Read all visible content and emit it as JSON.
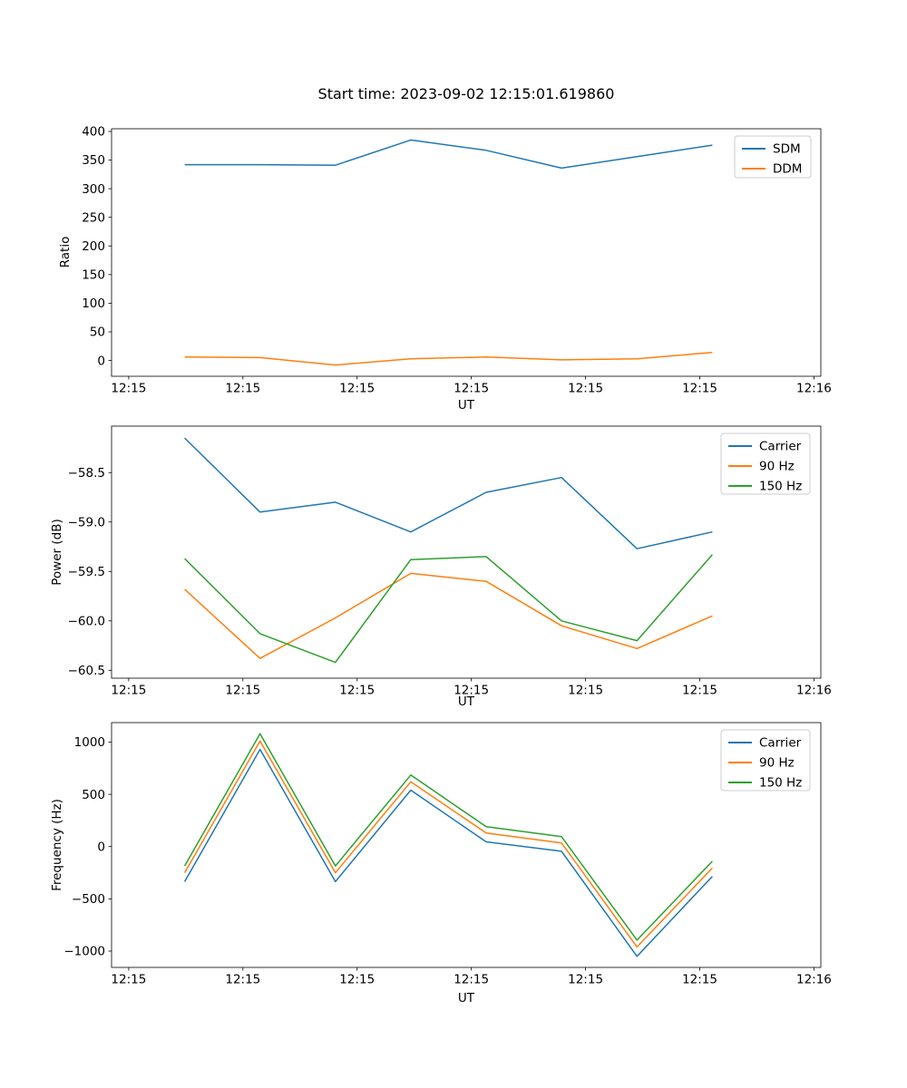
{
  "figure": {
    "title": "Start time: 2023-09-02 12:15:01.619860",
    "background": "#ffffff"
  },
  "sample_times_seconds_after_12_15": [
    4.9,
    11.5,
    18.1,
    24.7,
    31.3,
    37.9,
    44.5,
    51.1
  ],
  "chart_data": [
    {
      "type": "line",
      "title": "Start time: 2023-09-02 12:15:01.619860",
      "xlabel": "UT",
      "ylabel": "Ratio",
      "x": [
        4.9,
        11.5,
        18.1,
        24.7,
        31.3,
        37.9,
        44.5,
        51.1
      ],
      "xlim": [
        -1.5,
        60.6
      ],
      "xtick_values": [
        0,
        10,
        20,
        30,
        40,
        50,
        60
      ],
      "xtick_labels": [
        "12:15",
        "12:15",
        "12:15",
        "12:15",
        "12:15",
        "12:15",
        "12:16"
      ],
      "ylim": [
        -27.6,
        404.7
      ],
      "ytick_values": [
        0,
        50,
        100,
        150,
        200,
        250,
        300,
        350,
        400
      ],
      "ytick_labels": [
        "0",
        "50",
        "100",
        "150",
        "200",
        "250",
        "300",
        "350",
        "400"
      ],
      "grid": false,
      "legend_position": "upper right",
      "series": [
        {
          "name": "SDM",
          "color": "#1f77b4",
          "values": [
            342,
            342,
            341,
            385,
            367,
            336,
            356,
            376
          ]
        },
        {
          "name": "DDM",
          "color": "#ff7f0e",
          "values": [
            6,
            5,
            -8,
            3,
            6,
            1,
            3,
            14
          ]
        }
      ]
    },
    {
      "type": "line",
      "xlabel": "UT",
      "ylabel": "Power (dB)",
      "x": [
        4.9,
        11.5,
        18.1,
        24.7,
        31.3,
        37.9,
        44.5,
        51.1
      ],
      "xlim": [
        -1.5,
        60.6
      ],
      "xtick_values": [
        0,
        10,
        20,
        30,
        40,
        50,
        60
      ],
      "xtick_labels": [
        "12:15",
        "12:15",
        "12:15",
        "12:15",
        "12:15",
        "12:15",
        "12:16"
      ],
      "ylim": [
        -60.58,
        -58.03
      ],
      "ytick_values": [
        -60.5,
        -60.0,
        -59.5,
        -59.0,
        -58.5
      ],
      "ytick_labels": [
        "−60.5",
        "−60.0",
        "−59.5",
        "−59.0",
        "−58.5"
      ],
      "grid": false,
      "legend_position": "upper right",
      "series": [
        {
          "name": "Carrier",
          "color": "#1f77b4",
          "values": [
            -58.15,
            -58.9,
            -58.8,
            -59.1,
            -58.7,
            -58.55,
            -59.27,
            -59.1
          ]
        },
        {
          "name": "90 Hz",
          "color": "#ff7f0e",
          "values": [
            -59.68,
            -60.38,
            -59.97,
            -59.52,
            -59.6,
            -60.05,
            -60.28,
            -59.95
          ]
        },
        {
          "name": "150 Hz",
          "color": "#2ca02c",
          "values": [
            -59.37,
            -60.13,
            -60.42,
            -59.38,
            -59.35,
            -60.0,
            -60.2,
            -59.33
          ]
        }
      ]
    },
    {
      "type": "line",
      "xlabel": "UT",
      "ylabel": "Frequency (Hz)",
      "x": [
        4.9,
        11.5,
        18.1,
        24.7,
        31.3,
        37.9,
        44.5,
        51.1
      ],
      "xlim": [
        -1.5,
        60.6
      ],
      "xtick_values": [
        0,
        10,
        20,
        30,
        40,
        50,
        60
      ],
      "xtick_labels": [
        "12:15",
        "12:15",
        "12:15",
        "12:15",
        "12:15",
        "12:15",
        "12:16"
      ],
      "ylim": [
        -1156,
        1186
      ],
      "ytick_values": [
        -1000,
        -500,
        0,
        500,
        1000
      ],
      "ytick_labels": [
        "−1000",
        "−500",
        "0",
        "500",
        "1000"
      ],
      "grid": false,
      "legend_position": "upper right",
      "series": [
        {
          "name": "Carrier",
          "color": "#1f77b4",
          "values": [
            -335,
            930,
            -335,
            540,
            45,
            -45,
            -1050,
            -285
          ]
        },
        {
          "name": "90 Hz",
          "color": "#ff7f0e",
          "values": [
            -250,
            1010,
            -250,
            620,
            130,
            35,
            -960,
            -205
          ]
        },
        {
          "name": "150 Hz",
          "color": "#2ca02c",
          "values": [
            -185,
            1080,
            -185,
            685,
            190,
            95,
            -895,
            -140
          ]
        }
      ]
    }
  ]
}
